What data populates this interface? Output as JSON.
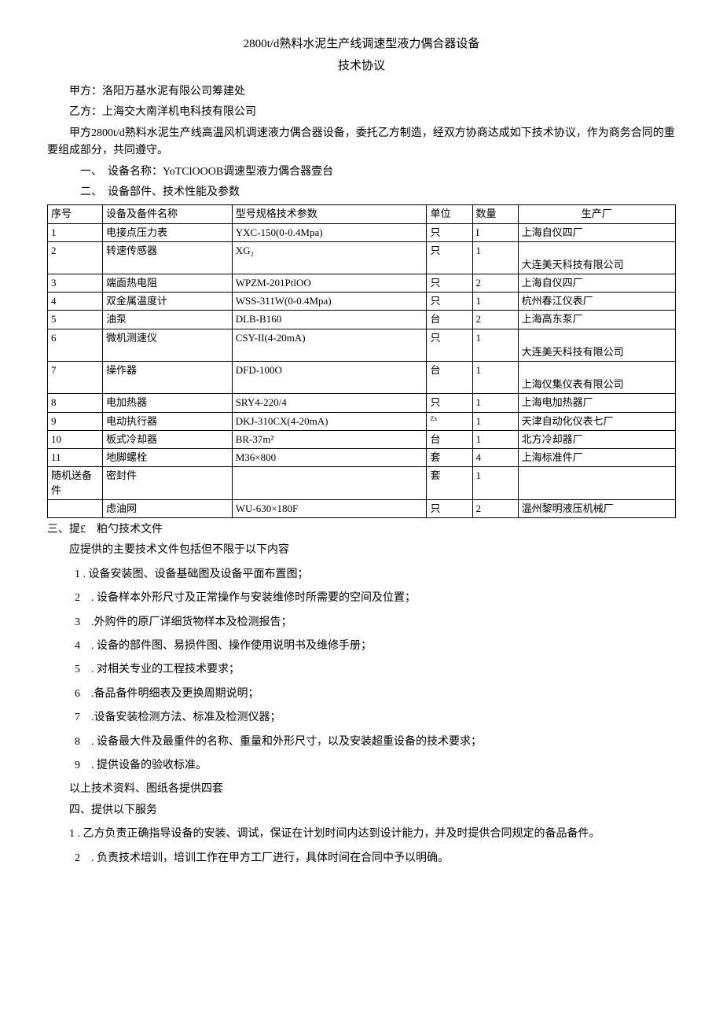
{
  "title": "2800t/d熟料水泥生产线调速型液力偶合器设备",
  "subtitle": "技术协议",
  "party_a": "甲方：洛阳万基水泥有限公司筹建处",
  "party_b": "乙方：上海交大南洋机电科技有限公司",
  "preamble": "甲方2800t/d熟料水泥生产线高温风机调速液力偶合器设备，委托乙方制造，经双方协商达成如下技术协议，作为商务合同的重要组成部分，共同遵守。",
  "section1": "一、　设备名称：YoTClOOOB调速型液力偶合器壹台",
  "section2": "二、　设备部件、技术性能及参数",
  "table": {
    "headers": {
      "seq": "序号",
      "name": "设备及备件名称",
      "spec": "型号规格技术参数",
      "unit": "单位",
      "qty": "数量",
      "mfr": "生产厂"
    },
    "rows": [
      {
        "seq": "1",
        "name": "电接点压力表",
        "spec": "YXC-150(0-0.4Mpa)",
        "unit": "只",
        "qty": "I",
        "mfr": "上海自仪四厂"
      },
      {
        "seq": "2",
        "name": "转速传感器",
        "spec": "XG₂",
        "unit": "只",
        "qty": "1",
        "mfr": "大连美天科技有限公司"
      },
      {
        "seq": "3",
        "name": "端面热电阻",
        "spec": "WPZM-201PtlOO",
        "unit": "只",
        "qty": "2",
        "mfr": "上海自仪四厂"
      },
      {
        "seq": "4",
        "name": "双金属温度计",
        "spec": "WSS-311W(0-0.4Mpa)",
        "unit": "只",
        "qty": "1",
        "mfr": "杭州春江仪表厂"
      },
      {
        "seq": "5",
        "name": "油泵",
        "spec": "DLB-B160",
        "unit": "台",
        "qty": "2",
        "mfr": "上海高东泵厂"
      },
      {
        "seq": "6",
        "name": "微机测速仪",
        "spec": "CSY-II(4-20mA)",
        "unit": "只",
        "qty": "1",
        "mfr": "大连美天科技有限公司"
      },
      {
        "seq": "7",
        "name": "操作器",
        "spec": "DFD-100O",
        "unit": "台",
        "qty": "1",
        "mfr": "上海仪集仪表有限公司"
      },
      {
        "seq": "8",
        "name": "电加热器",
        "spec": "SRY4-220/4",
        "unit": "只",
        "qty": "1",
        "mfr": "上海电加热器厂"
      },
      {
        "seq": "9",
        "name": "电动执行器",
        "spec": "DKJ-310CX(4-20mA)",
        "unit": "Zx",
        "qty": "1",
        "mfr": "天津自动化仪表七厂"
      },
      {
        "seq": "10",
        "name": "板式冷却器",
        "spec": "BR-37m²",
        "unit": "台",
        "qty": "1",
        "mfr": "北方冷却器厂"
      },
      {
        "seq": "11",
        "name": "地脚螺栓",
        "spec": "M36×800",
        "unit": "套",
        "qty": "4",
        "mfr": "上海标准件厂"
      },
      {
        "seq": "随机送备件",
        "name": "密封件",
        "spec": "",
        "unit": "套",
        "qty": "1",
        "mfr": ""
      },
      {
        "seq": "",
        "name": "虑油网",
        "spec": "WU-630×180F",
        "unit": "只",
        "qty": "2",
        "mfr": "温州黎明液压机械厂"
      }
    ]
  },
  "section3": "三、提£　粕勺技术文件",
  "section3_intro": "应提供的主要技术文件包括但不限于以下内容",
  "section3_items": [
    "1 . 设备安装图、设备基础图及设备平面布置图；",
    "2　. 设备样本外形尺寸及正常操作与安装维修时所需要的空间及位置；",
    "3　.外购件的原厂详细货物样本及检测报告；",
    "4　. 设备的部件图、易损件图、操作使用说明书及维修手册；",
    "5　. 对相关专业的工程技术要求；",
    "6　.备品备件明细表及更换周期说明；",
    "7　.设备安装检测方法、标准及检测仪器；",
    "8　. 设备最大件及最重件的名称、重量和外形尺寸，以及安装超重设备的技术要求；",
    "9　. 提供设备的验收标准。"
  ],
  "section3_end": "以上技术资料、图纸各提供四套",
  "section4": "四、提供以下服务",
  "section4_items": [
    "1 . 乙方负责正确指导设备的安装、调试，保证在计划时间内达到设计能力，并及时提供合同规定的备品备件。",
    "2　. 负责技术培训，培训工作在甲方工厂进行，具体时间在合同中予以明确。"
  ]
}
